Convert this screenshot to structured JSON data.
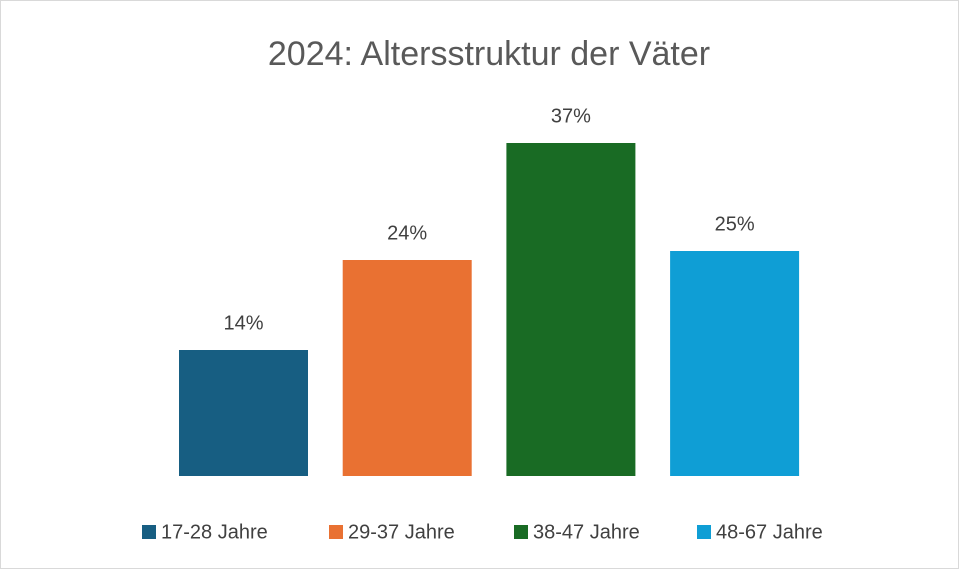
{
  "chart_data": {
    "type": "bar",
    "title": "2024: Altersstruktur der Väter",
    "series": [
      {
        "name": "17-28 Jahre",
        "color": "#175e82",
        "values": [
          14
        ],
        "value_labels": [
          "14%"
        ]
      },
      {
        "name": "29-37 Jahre",
        "color": "#e97132",
        "values": [
          24
        ],
        "value_labels": [
          "24%"
        ]
      },
      {
        "name": "38-47 Jahre",
        "color": "#196b24",
        "values": [
          37
        ],
        "value_labels": [
          "37%"
        ]
      },
      {
        "name": "48-67 Jahre",
        "color": "#0f9ed5",
        "values": [
          25
        ],
        "value_labels": [
          "25%"
        ]
      }
    ],
    "legend": "bottom"
  }
}
